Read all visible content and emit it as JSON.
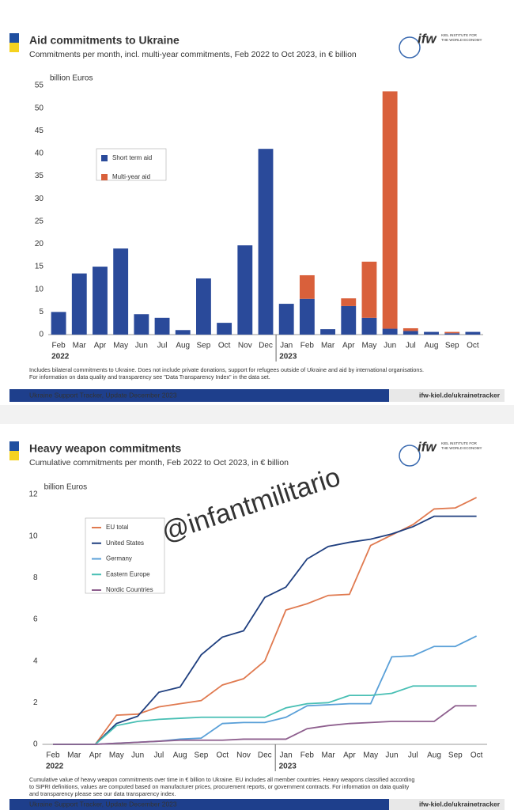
{
  "watermark": "@infantmilitario",
  "chart_data": [
    {
      "type": "bar",
      "stacked": true,
      "title": "Aid commitments to Ukraine",
      "subtitle": "Commitments per month, incl. multi-year commitments, Feb 2022 to Oct 2023, in € billion",
      "logo": "ifw",
      "logo_subtitle": [
        "KIEL INSTITUTE FOR",
        "THE WORLD ECONOMY"
      ],
      "y_label": "billion Euros",
      "groups": [
        {
          "label": "2022",
          "categories": [
            "Feb",
            "Mar",
            "Apr",
            "May",
            "Jun",
            "Jul",
            "Aug",
            "Sep",
            "Oct",
            "Nov",
            "Dec"
          ]
        },
        {
          "label": "2023",
          "categories": [
            "Jan",
            "Feb",
            "Mar",
            "Apr",
            "May",
            "Jun",
            "Jul",
            "Aug",
            "Sep",
            "Oct"
          ]
        }
      ],
      "series": [
        {
          "name": "Short term aid",
          "color": "#2a4a9a",
          "values": [
            5,
            13.5,
            15,
            19,
            4.5,
            3.7,
            1,
            12.4,
            2.6,
            19.7,
            41,
            6.8,
            7.9,
            1.2,
            6.3,
            3.7,
            1.3,
            0.8,
            0.6,
            0.3,
            0.6
          ]
        },
        {
          "name": "Multi-year aid",
          "color": "#d9603b",
          "values": [
            0,
            0,
            0,
            0,
            0,
            0,
            0,
            0,
            0,
            0,
            0,
            0,
            5.2,
            0,
            1.7,
            12.4,
            52.4,
            0.6,
            0,
            0.3,
            0
          ]
        }
      ],
      "ylim": [
        0,
        55
      ],
      "yticks": [
        0,
        5,
        10,
        15,
        20,
        25,
        30,
        35,
        40,
        45,
        50,
        55
      ],
      "grid": false,
      "notes": [
        "Includes bilateral commitments to Ukraine. Does not include private donations, support for refugees outside of Ukraine and aid by international organisations.",
        "For information on data quality and transparency see \"Data Transparency Index\" in the data set."
      ],
      "footer_left": "Ukraine Support Tracker, Update December 2023",
      "footer_right": "ifw-kiel.de/ukrainetracker"
    },
    {
      "type": "line",
      "title": "Heavy weapon commitments",
      "subtitle": "Cumulative commitments per month, Feb 2022 to Oct 2023, in € billion",
      "logo": "ifw",
      "logo_subtitle": [
        "KIEL INSTITUTE FOR",
        "THE WORLD ECONOMY"
      ],
      "y_label": "billion Euros",
      "groups": [
        {
          "label": "2022",
          "categories": [
            "Feb",
            "Mar",
            "Apr",
            "May",
            "Jun",
            "Jul",
            "Aug",
            "Sep",
            "Oct",
            "Nov",
            "Dec"
          ]
        },
        {
          "label": "2023",
          "categories": [
            "Jan",
            "Feb",
            "Mar",
            "Apr",
            "May",
            "Jun",
            "Jul",
            "Aug",
            "Sep",
            "Oct"
          ]
        }
      ],
      "series": [
        {
          "name": "EU total",
          "color": "#e07a50",
          "values": [
            0,
            0,
            0,
            1.4,
            1.45,
            1.8,
            1.95,
            2.1,
            2.85,
            3.15,
            4.0,
            6.45,
            6.75,
            7.15,
            7.2,
            9.55,
            10.05,
            10.55,
            11.3,
            11.35,
            11.85
          ]
        },
        {
          "name": "United States",
          "color": "#1f3f7f",
          "values": [
            0,
            0,
            0,
            1.0,
            1.35,
            2.5,
            2.75,
            4.3,
            5.15,
            5.45,
            7.05,
            7.55,
            8.9,
            9.5,
            9.7,
            9.85,
            10.1,
            10.45,
            10.95,
            10.95,
            10.95
          ]
        },
        {
          "name": "Germany",
          "color": "#5aa0d8",
          "values": [
            0,
            0,
            0,
            0.05,
            0.1,
            0.15,
            0.25,
            0.3,
            1.0,
            1.05,
            1.05,
            1.3,
            1.85,
            1.9,
            1.95,
            1.95,
            4.2,
            4.25,
            4.7,
            4.7,
            5.2
          ]
        },
        {
          "name": "Eastern Europe",
          "color": "#48bfb4",
          "values": [
            0,
            0,
            0,
            0.9,
            1.1,
            1.2,
            1.25,
            1.3,
            1.3,
            1.3,
            1.3,
            1.75,
            1.95,
            2.0,
            2.35,
            2.35,
            2.45,
            2.8,
            2.8,
            2.8,
            2.8
          ]
        },
        {
          "name": "Nordic Countries",
          "color": "#8e5f8e",
          "values": [
            0,
            0,
            0,
            0.05,
            0.1,
            0.15,
            0.2,
            0.2,
            0.2,
            0.25,
            0.25,
            0.25,
            0.75,
            0.9,
            1.0,
            1.05,
            1.1,
            1.1,
            1.1,
            1.85,
            1.85
          ]
        }
      ],
      "ylim": [
        0,
        12
      ],
      "yticks": [
        0,
        2,
        4,
        6,
        8,
        10,
        12
      ],
      "grid": false,
      "notes": [
        "Cumulative value of heavy weapon commitments over time in € billion to Ukraine. EU includes all member countries. Heavy weapons classified according",
        "to SIPRI definitions, values are computed based on manufacturer prices, procurement reports, or government contracts. For information on data quality",
        "and transparency please see our data transparency index."
      ],
      "footer_left": "Ukraine Support Tracker, Update December 2023",
      "footer_right": "ifw-kiel.de/ukrainetracker"
    }
  ]
}
